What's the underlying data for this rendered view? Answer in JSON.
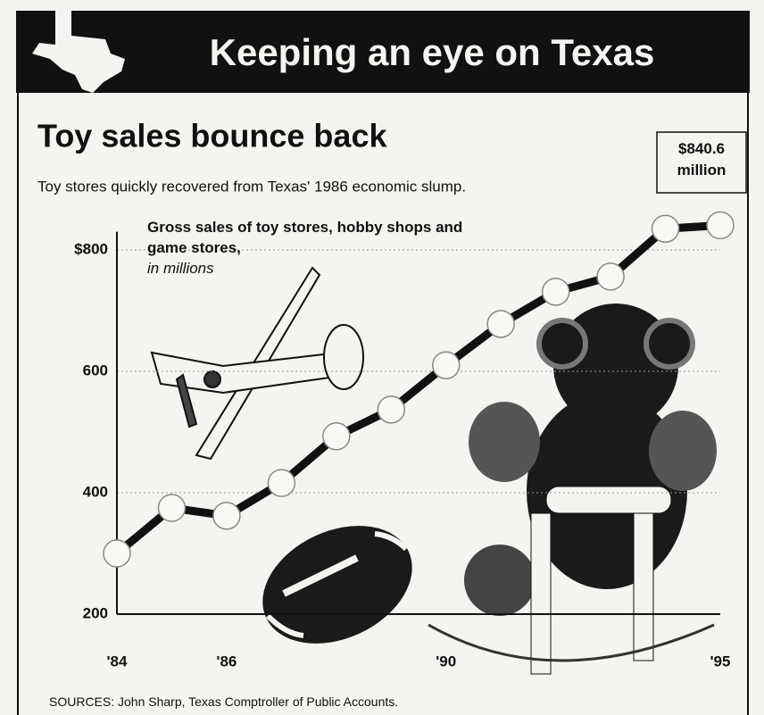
{
  "chart_data": {
    "type": "line",
    "header": "Keeping an eye on Texas",
    "title": "Toy sales bounce back",
    "subtitle": "Toy stores quickly recovered from Texas' 1986 economic slump.",
    "y_label": "Gross sales of toy stores, hobby shops and game stores,",
    "y_unit": "in millions",
    "source": "SOURCES: John Sharp, Texas Comptroller of Public Accounts.",
    "x": [
      1984,
      1985,
      1986,
      1987,
      1988,
      1989,
      1990,
      1991,
      1992,
      1993,
      1994,
      1995
    ],
    "values": [
      300,
      375,
      362,
      416,
      493,
      537,
      610,
      678,
      731,
      756,
      835,
      840.6
    ],
    "value_labels": [
      null,
      null,
      null,
      null,
      null,
      null,
      null,
      null,
      null,
      null,
      null,
      "$840.6 million"
    ],
    "color": "#111111",
    "xlim": [
      1984,
      1995
    ],
    "xticks": [
      {
        "value": 1984,
        "label": "'84"
      },
      {
        "value": 1986,
        "label": "'86"
      },
      {
        "value": 1990,
        "label": "'90"
      },
      {
        "value": 1995,
        "label": "'95"
      }
    ],
    "ylim": [
      200,
      830
    ],
    "yticks": [
      {
        "value": 800,
        "label": "$800"
      },
      600,
      400,
      200
    ],
    "grid": true
  }
}
